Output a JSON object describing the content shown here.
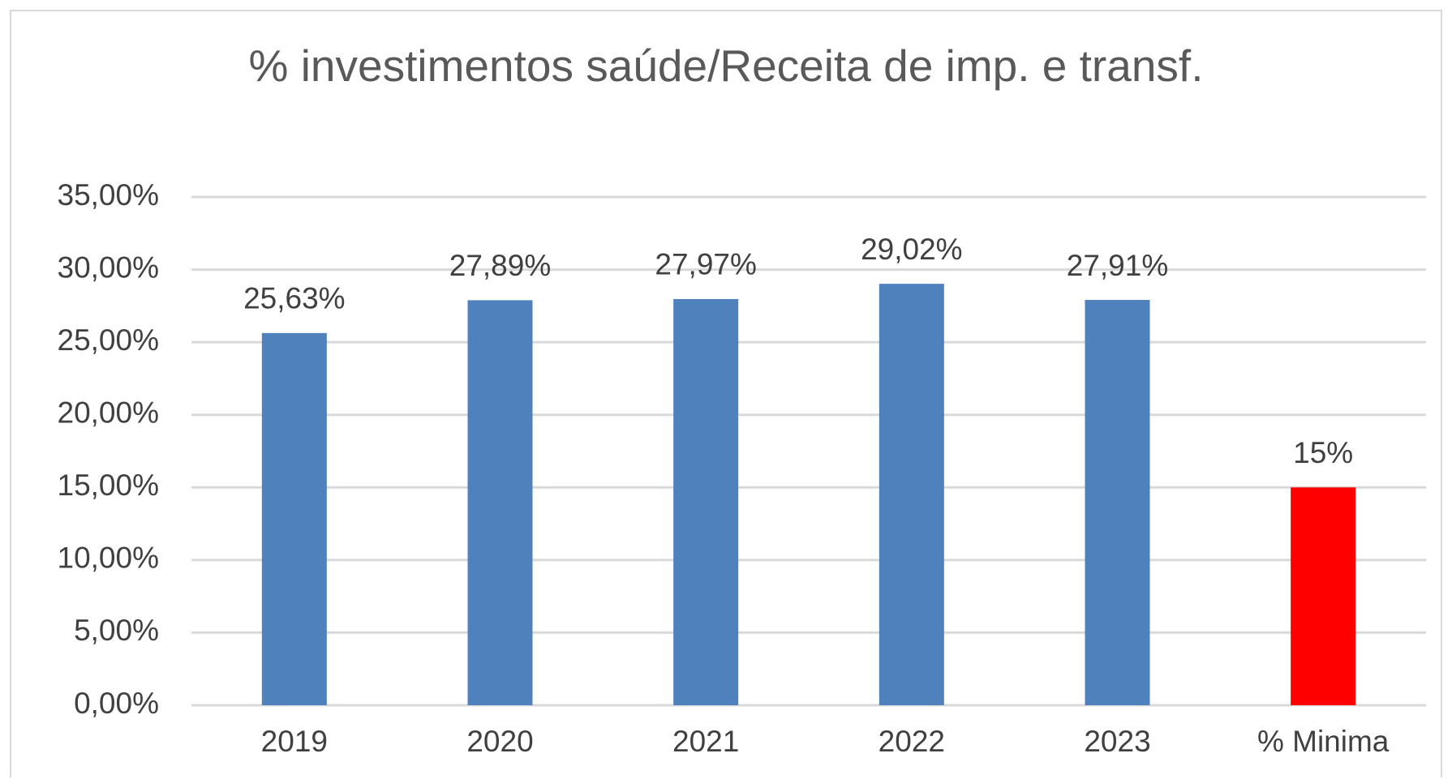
{
  "chart_data": {
    "type": "bar",
    "title": "% investimentos saúde/Receita de imp. e transf.",
    "categories": [
      "2019",
      "2020",
      "2021",
      "2022",
      "2023",
      "% Minima"
    ],
    "values": [
      25.63,
      27.89,
      27.97,
      29.02,
      27.91,
      15
    ],
    "value_labels": [
      "25,63%",
      "27,89%",
      "27,97%",
      "29,02%",
      "27,91%",
      "15%"
    ],
    "colors": [
      "#4f81bd",
      "#4f81bd",
      "#4f81bd",
      "#4f81bd",
      "#4f81bd",
      "#ff0000"
    ],
    "ylim": [
      0,
      35
    ],
    "yticks": [
      {
        "value": 0,
        "label": "0,00%"
      },
      {
        "value": 5,
        "label": "5,00%"
      },
      {
        "value": 10,
        "label": "10,00%"
      },
      {
        "value": 15,
        "label": "15,00%"
      },
      {
        "value": 20,
        "label": "20,00%"
      },
      {
        "value": 25,
        "label": "25,00%"
      },
      {
        "value": 30,
        "label": "30,00%"
      },
      {
        "value": 35,
        "label": "35,00%"
      }
    ],
    "grid": true
  }
}
